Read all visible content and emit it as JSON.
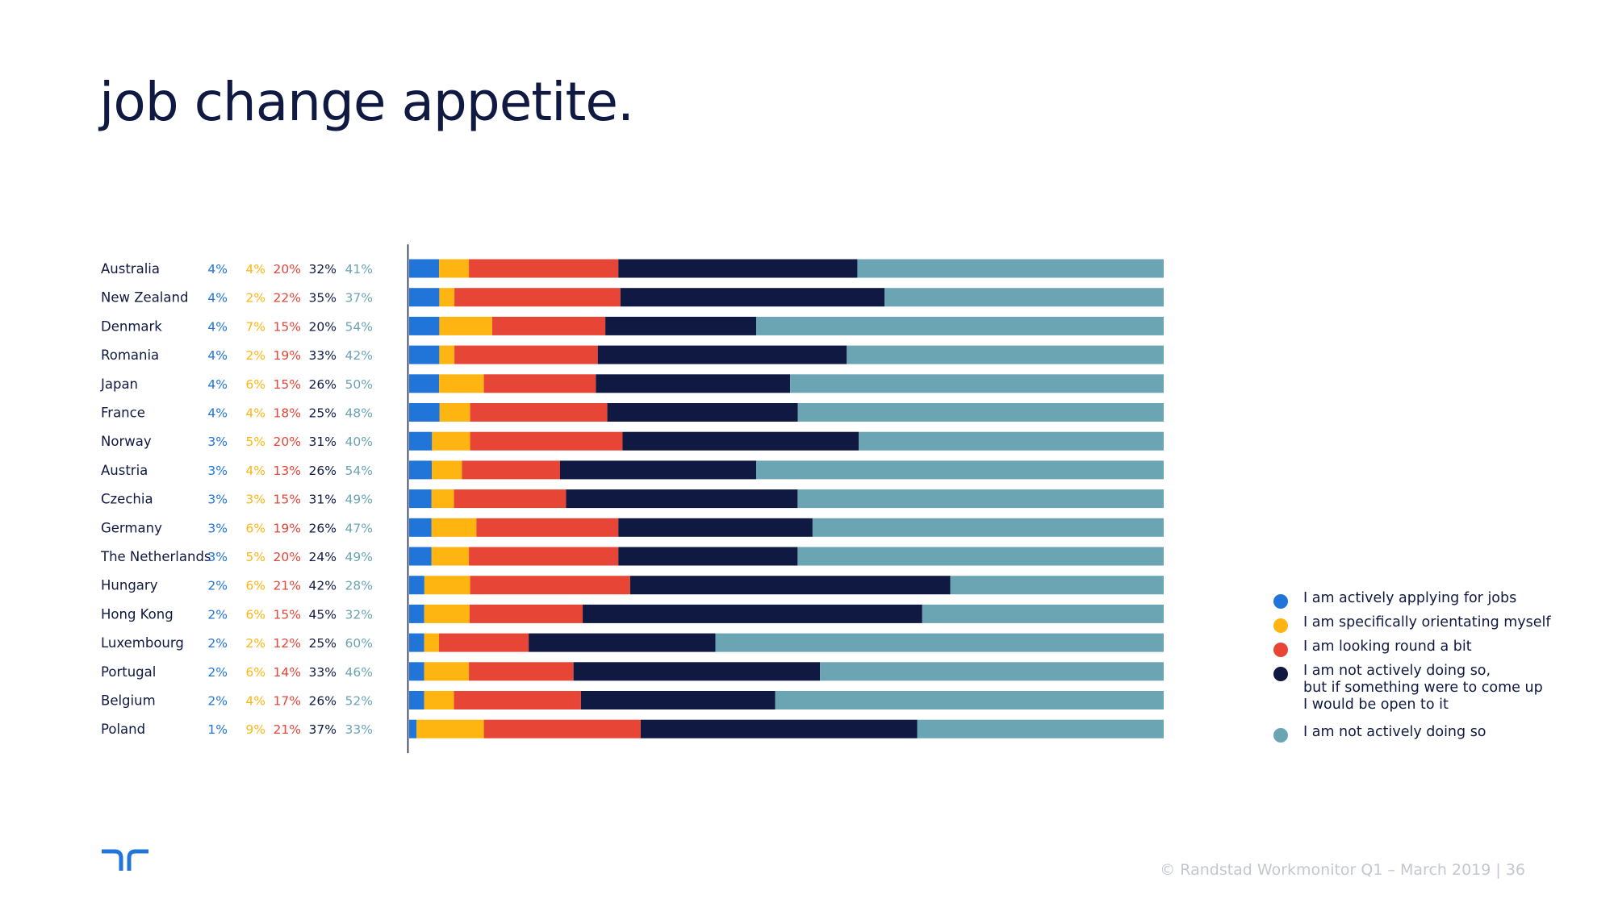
{
  "page": {
    "title": "job change appetite.",
    "footer": "© Randstad Workmonitor Q1 – March 2019  |  36"
  },
  "logo": {
    "icon": "randstad-logo-icon",
    "color": "#2175d9"
  },
  "chart_data": {
    "type": "bar",
    "orientation": "horizontal",
    "stacked": true,
    "normalized": true,
    "xlim": [
      0,
      100
    ],
    "categories": [
      "Australia",
      "New Zealand",
      "Denmark",
      "Romania",
      "Japan",
      "France",
      "Norway",
      "Austria",
      "Czechia",
      "Germany",
      "The Netherlands",
      "Hungary",
      "Hong Kong",
      "Luxembourg",
      "Portugal",
      "Belgium",
      "Poland"
    ],
    "series": [
      {
        "name": "I am actively applying for jobs",
        "color": "#2175d9",
        "label_color": "#2175d9",
        "values": [
          4,
          4,
          4,
          4,
          4,
          4,
          3,
          3,
          3,
          3,
          3,
          2,
          2,
          2,
          2,
          2,
          1
        ]
      },
      {
        "name": "I am specifically orientating myself",
        "color": "#ffb511",
        "label_color": "#ffb511",
        "values": [
          4,
          2,
          7,
          2,
          6,
          4,
          5,
          4,
          3,
          6,
          5,
          6,
          6,
          2,
          6,
          4,
          9
        ]
      },
      {
        "name": "I am looking round a bit",
        "color": "#e74536",
        "label_color": "#e74536",
        "values": [
          20,
          22,
          15,
          19,
          15,
          18,
          20,
          13,
          15,
          19,
          20,
          21,
          15,
          12,
          14,
          17,
          21
        ]
      },
      {
        "name": "I am not actively doing so,\nbut if something were to come up\nI would be open to it",
        "color": "#0f1941",
        "label_color": "#0f1941",
        "values": [
          32,
          35,
          20,
          33,
          26,
          25,
          31,
          26,
          31,
          26,
          24,
          42,
          45,
          25,
          33,
          26,
          37
        ]
      },
      {
        "name": "I am not actively doing so",
        "color": "#6ba5b4",
        "label_color": "#6ba5b4",
        "values": [
          41,
          37,
          54,
          42,
          50,
          48,
          40,
          54,
          49,
          47,
          49,
          28,
          32,
          60,
          46,
          52,
          33
        ]
      }
    ],
    "legend_position": "right",
    "grid": false
  }
}
